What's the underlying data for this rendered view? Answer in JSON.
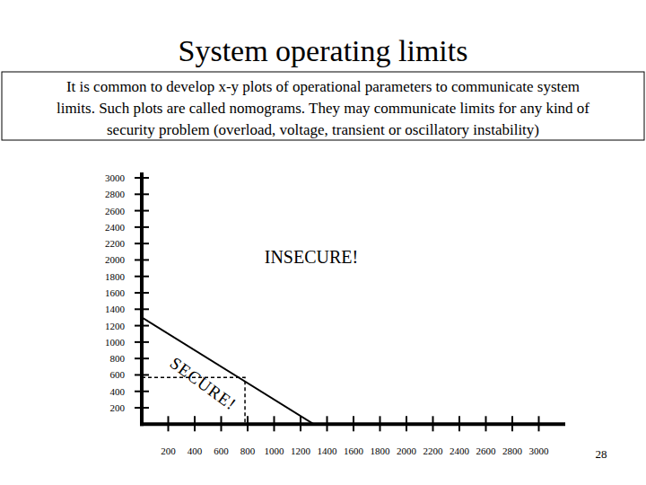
{
  "slide": {
    "title": "System operating limits",
    "description": [
      "It is common to develop x-y plots of operational parameters to communicate system",
      "limits. Such plots are called nomograms. They may communicate limits for any kind of",
      "security problem (overload, voltage, transient or oscillatory  instability)"
    ],
    "page_number": "28"
  },
  "chart_data": {
    "type": "line",
    "annotations": [
      "INSECURE!",
      "SECURE!"
    ],
    "series": [
      {
        "x": [
          0,
          1300
        ],
        "values": [
          1300,
          0
        ],
        "color": "#000000",
        "line_style": "solid"
      },
      {
        "x": [
          0,
          780,
          780
        ],
        "values": [
          570,
          570,
          0
        ],
        "color": "#000000",
        "line_style": "dashed"
      }
    ],
    "xlim": [
      0,
      3200
    ],
    "xticks": [
      200,
      400,
      600,
      800,
      1000,
      1200,
      1400,
      1600,
      1800,
      2000,
      2200,
      2400,
      2600,
      2800,
      3000
    ],
    "ylim": [
      0,
      3000
    ],
    "yticks": [
      200,
      400,
      600,
      800,
      1000,
      1200,
      1400,
      1600,
      1800,
      2000,
      2200,
      2400,
      2600,
      2800,
      3000
    ],
    "grid": false
  }
}
